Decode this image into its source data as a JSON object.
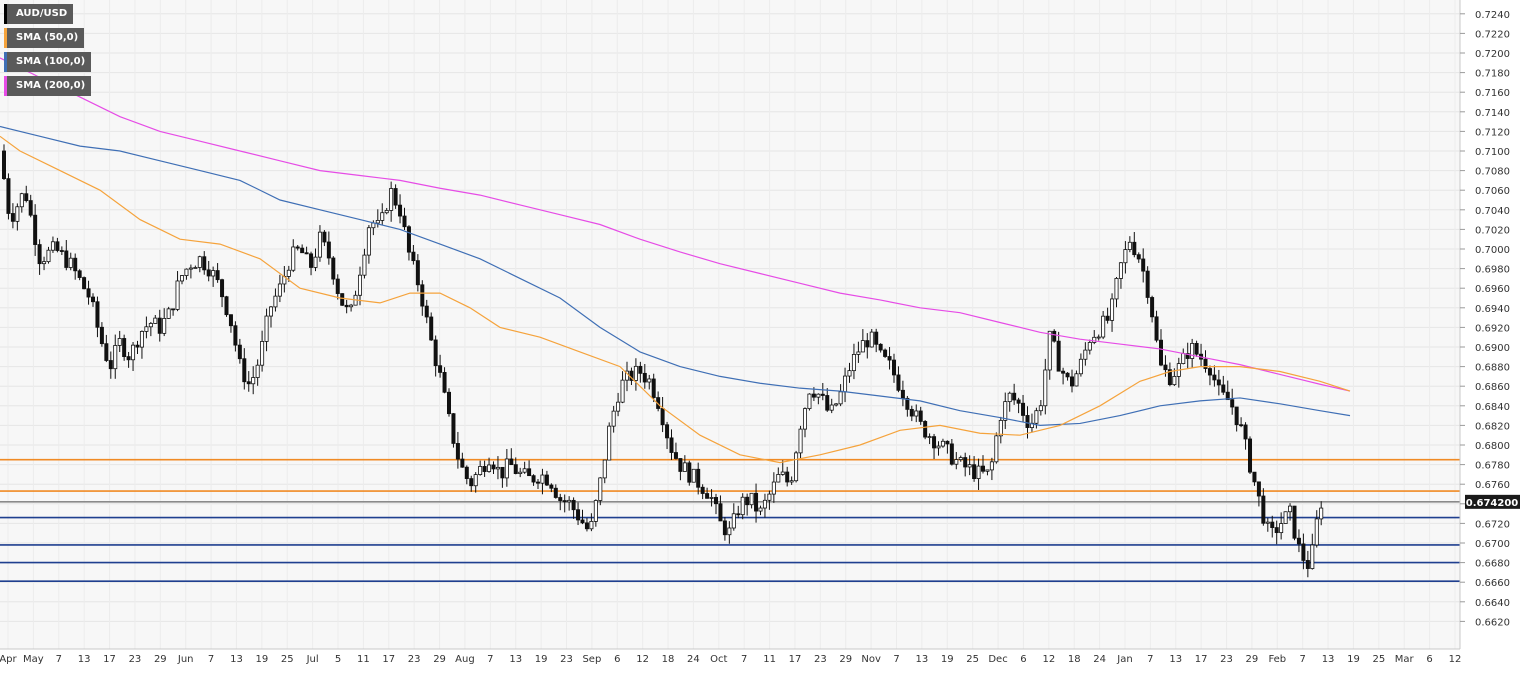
{
  "chart_data": {
    "type": "candlestick",
    "symbol": "AUD/USD",
    "last_price_label": "0.674200",
    "y_range": [
      0.66,
      0.725
    ],
    "y_ticks": [
      "0.6620",
      "0.6640",
      "0.6660",
      "0.6680",
      "0.6700",
      "0.6720",
      "0.6740",
      "0.6760",
      "0.6780",
      "0.6800",
      "0.6820",
      "0.6840",
      "0.6860",
      "0.6880",
      "0.6900",
      "0.6920",
      "0.6940",
      "0.6960",
      "0.6980",
      "0.7000",
      "0.7020",
      "0.7040",
      "0.7060",
      "0.7080",
      "0.7100",
      "0.7120",
      "0.7140",
      "0.7160",
      "0.7180",
      "0.7200",
      "0.7220",
      "0.7240"
    ],
    "x_axis_labels": [
      "Apr",
      "May",
      "7",
      "13",
      "17",
      "23",
      "29",
      "Jun",
      "7",
      "13",
      "19",
      "25",
      "Jul",
      "5",
      "11",
      "17",
      "23",
      "29",
      "Aug",
      "7",
      "13",
      "19",
      "23",
      "Sep",
      "6",
      "12",
      "18",
      "24",
      "Oct",
      "7",
      "11",
      "17",
      "23",
      "29",
      "Nov",
      "7",
      "13",
      "19",
      "25",
      "Dec",
      "6",
      "12",
      "18",
      "24",
      "Jan",
      "7",
      "13",
      "17",
      "23",
      "29",
      "Feb",
      "7",
      "13",
      "19",
      "25",
      "Mar",
      "6",
      "12"
    ],
    "legend": [
      {
        "label": "AUD/USD",
        "color": "#000000"
      },
      {
        "label": "SMA (50,0)",
        "color": "#f5a33c"
      },
      {
        "label": "SMA (100,0)",
        "color": "#3f6fb5"
      },
      {
        "label": "SMA (200,0)",
        "color": "#e64ce6"
      }
    ],
    "horizontal_levels": [
      {
        "value": 0.6785,
        "color": "#f08a24"
      },
      {
        "value": 0.6753,
        "color": "#f08a24"
      },
      {
        "value": 0.6742,
        "color": "#8a8a8a"
      },
      {
        "value": 0.6726,
        "color": "#1f3f8f"
      },
      {
        "value": 0.6698,
        "color": "#1f3f8f"
      },
      {
        "value": 0.668,
        "color": "#1f3f8f"
      },
      {
        "value": 0.6661,
        "color": "#1f3f8f"
      }
    ],
    "close_path": [
      [
        0,
        0.71
      ],
      [
        10,
        0.703
      ],
      [
        25,
        0.706
      ],
      [
        40,
        0.699
      ],
      [
        55,
        0.7
      ],
      [
        70,
        0.6985
      ],
      [
        90,
        0.695
      ],
      [
        100,
        0.691
      ],
      [
        110,
        0.688
      ],
      [
        120,
        0.6905
      ],
      [
        130,
        0.689
      ],
      [
        140,
        0.6915
      ],
      [
        150,
        0.6925
      ],
      [
        160,
        0.692
      ],
      [
        170,
        0.6935
      ],
      [
        180,
        0.697
      ],
      [
        190,
        0.6985
      ],
      [
        200,
        0.699
      ],
      [
        210,
        0.698
      ],
      [
        220,
        0.696
      ],
      [
        230,
        0.693
      ],
      [
        240,
        0.688
      ],
      [
        250,
        0.686
      ],
      [
        260,
        0.689
      ],
      [
        270,
        0.694
      ],
      [
        280,
        0.696
      ],
      [
        290,
        0.699
      ],
      [
        300,
        0.7
      ],
      [
        310,
        0.698
      ],
      [
        320,
        0.701
      ],
      [
        330,
        0.699
      ],
      [
        340,
        0.695
      ],
      [
        350,
        0.693
      ],
      [
        360,
        0.698
      ],
      [
        370,
        0.703
      ],
      [
        380,
        0.702
      ],
      [
        390,
        0.706
      ],
      [
        400,
        0.704
      ],
      [
        410,
        0.699
      ],
      [
        420,
        0.696
      ],
      [
        430,
        0.691
      ],
      [
        440,
        0.687
      ],
      [
        450,
        0.682
      ],
      [
        460,
        0.678
      ],
      [
        470,
        0.676
      ],
      [
        480,
        0.6775
      ],
      [
        490,
        0.679
      ],
      [
        500,
        0.677
      ],
      [
        510,
        0.678
      ],
      [
        520,
        0.677
      ],
      [
        530,
        0.6765
      ],
      [
        540,
        0.677
      ],
      [
        550,
        0.6765
      ],
      [
        560,
        0.6745
      ],
      [
        570,
        0.674
      ],
      [
        580,
        0.6725
      ],
      [
        590,
        0.671
      ],
      [
        600,
        0.676
      ],
      [
        610,
        0.682
      ],
      [
        620,
        0.686
      ],
      [
        630,
        0.687
      ],
      [
        640,
        0.6875
      ],
      [
        650,
        0.6865
      ],
      [
        660,
        0.684
      ],
      [
        670,
        0.68
      ],
      [
        680,
        0.678
      ],
      [
        690,
        0.677
      ],
      [
        700,
        0.676
      ],
      [
        710,
        0.675
      ],
      [
        720,
        0.672
      ],
      [
        730,
        0.671
      ],
      [
        740,
        0.674
      ],
      [
        750,
        0.6745
      ],
      [
        760,
        0.673
      ],
      [
        770,
        0.675
      ],
      [
        780,
        0.677
      ],
      [
        790,
        0.676
      ],
      [
        800,
        0.682
      ],
      [
        810,
        0.686
      ],
      [
        820,
        0.685
      ],
      [
        830,
        0.683
      ],
      [
        840,
        0.685
      ],
      [
        850,
        0.688
      ],
      [
        860,
        0.69
      ],
      [
        870,
        0.691
      ],
      [
        880,
        0.689
      ],
      [
        890,
        0.688
      ],
      [
        900,
        0.686
      ],
      [
        910,
        0.684
      ],
      [
        920,
        0.682
      ],
      [
        930,
        0.681
      ],
      [
        940,
        0.68
      ],
      [
        950,
        0.679
      ],
      [
        960,
        0.678
      ],
      [
        970,
        0.6775
      ],
      [
        980,
        0.677
      ],
      [
        990,
        0.677
      ],
      [
        1000,
        0.683
      ],
      [
        1010,
        0.685
      ],
      [
        1020,
        0.684
      ],
      [
        1030,
        0.682
      ],
      [
        1040,
        0.684
      ],
      [
        1050,
        0.691
      ],
      [
        1060,
        0.688
      ],
      [
        1070,
        0.686
      ],
      [
        1080,
        0.688
      ],
      [
        1090,
        0.691
      ],
      [
        1100,
        0.692
      ],
      [
        1110,
        0.693
      ],
      [
        1120,
        0.698
      ],
      [
        1130,
        0.701
      ],
      [
        1140,
        0.699
      ],
      [
        1150,
        0.695
      ],
      [
        1160,
        0.688
      ],
      [
        1170,
        0.687
      ],
      [
        1180,
        0.688
      ],
      [
        1190,
        0.69
      ],
      [
        1200,
        0.689
      ],
      [
        1210,
        0.688
      ],
      [
        1220,
        0.685
      ],
      [
        1230,
        0.6845
      ],
      [
        1240,
        0.682
      ],
      [
        1250,
        0.678
      ],
      [
        1260,
        0.674
      ],
      [
        1270,
        0.6705
      ],
      [
        1280,
        0.672
      ],
      [
        1290,
        0.673
      ],
      [
        1300,
        0.669
      ],
      [
        1310,
        0.6675
      ],
      [
        1320,
        0.6742
      ]
    ],
    "sma50_path": [
      [
        0,
        0.7115
      ],
      [
        20,
        0.71
      ],
      [
        60,
        0.708
      ],
      [
        100,
        0.706
      ],
      [
        140,
        0.703
      ],
      [
        180,
        0.701
      ],
      [
        220,
        0.7005
      ],
      [
        260,
        0.699
      ],
      [
        300,
        0.696
      ],
      [
        340,
        0.695
      ],
      [
        380,
        0.6945
      ],
      [
        410,
        0.6955
      ],
      [
        440,
        0.6955
      ],
      [
        470,
        0.694
      ],
      [
        500,
        0.692
      ],
      [
        540,
        0.691
      ],
      [
        580,
        0.6895
      ],
      [
        620,
        0.688
      ],
      [
        660,
        0.684
      ],
      [
        700,
        0.681
      ],
      [
        740,
        0.679
      ],
      [
        780,
        0.6782
      ],
      [
        820,
        0.679
      ],
      [
        860,
        0.68
      ],
      [
        900,
        0.6815
      ],
      [
        940,
        0.682
      ],
      [
        980,
        0.6812
      ],
      [
        1020,
        0.681
      ],
      [
        1060,
        0.682
      ],
      [
        1100,
        0.684
      ],
      [
        1140,
        0.6865
      ],
      [
        1170,
        0.6875
      ],
      [
        1200,
        0.688
      ],
      [
        1240,
        0.688
      ],
      [
        1280,
        0.6875
      ],
      [
        1320,
        0.6865
      ],
      [
        1350,
        0.6855
      ]
    ],
    "sma100_path": [
      [
        0,
        0.7125
      ],
      [
        40,
        0.7115
      ],
      [
        80,
        0.7105
      ],
      [
        120,
        0.71
      ],
      [
        160,
        0.709
      ],
      [
        200,
        0.708
      ],
      [
        240,
        0.707
      ],
      [
        280,
        0.705
      ],
      [
        320,
        0.704
      ],
      [
        360,
        0.703
      ],
      [
        400,
        0.702
      ],
      [
        440,
        0.7005
      ],
      [
        480,
        0.699
      ],
      [
        520,
        0.697
      ],
      [
        560,
        0.695
      ],
      [
        600,
        0.692
      ],
      [
        640,
        0.6895
      ],
      [
        680,
        0.688
      ],
      [
        720,
        0.687
      ],
      [
        760,
        0.6863
      ],
      [
        800,
        0.6858
      ],
      [
        840,
        0.6855
      ],
      [
        880,
        0.685
      ],
      [
        920,
        0.6845
      ],
      [
        960,
        0.6835
      ],
      [
        1000,
        0.6828
      ],
      [
        1040,
        0.682
      ],
      [
        1080,
        0.6822
      ],
      [
        1120,
        0.683
      ],
      [
        1160,
        0.684
      ],
      [
        1200,
        0.6845
      ],
      [
        1240,
        0.6848
      ],
      [
        1280,
        0.6842
      ],
      [
        1320,
        0.6835
      ],
      [
        1350,
        0.683
      ]
    ],
    "sma200_path": [
      [
        0,
        0.7195
      ],
      [
        40,
        0.7175
      ],
      [
        80,
        0.7155
      ],
      [
        120,
        0.7135
      ],
      [
        160,
        0.712
      ],
      [
        200,
        0.711
      ],
      [
        240,
        0.71
      ],
      [
        280,
        0.709
      ],
      [
        320,
        0.708
      ],
      [
        360,
        0.7075
      ],
      [
        400,
        0.707
      ],
      [
        440,
        0.7062
      ],
      [
        480,
        0.7055
      ],
      [
        520,
        0.7045
      ],
      [
        560,
        0.7035
      ],
      [
        600,
        0.7025
      ],
      [
        640,
        0.701
      ],
      [
        680,
        0.6997
      ],
      [
        720,
        0.6985
      ],
      [
        760,
        0.6975
      ],
      [
        800,
        0.6965
      ],
      [
        840,
        0.6955
      ],
      [
        880,
        0.6948
      ],
      [
        920,
        0.694
      ],
      [
        960,
        0.6935
      ],
      [
        1000,
        0.6925
      ],
      [
        1040,
        0.6915
      ],
      [
        1080,
        0.6908
      ],
      [
        1120,
        0.6903
      ],
      [
        1160,
        0.6898
      ],
      [
        1200,
        0.689
      ],
      [
        1240,
        0.6882
      ],
      [
        1280,
        0.6872
      ],
      [
        1320,
        0.6862
      ],
      [
        1350,
        0.6855
      ]
    ]
  }
}
